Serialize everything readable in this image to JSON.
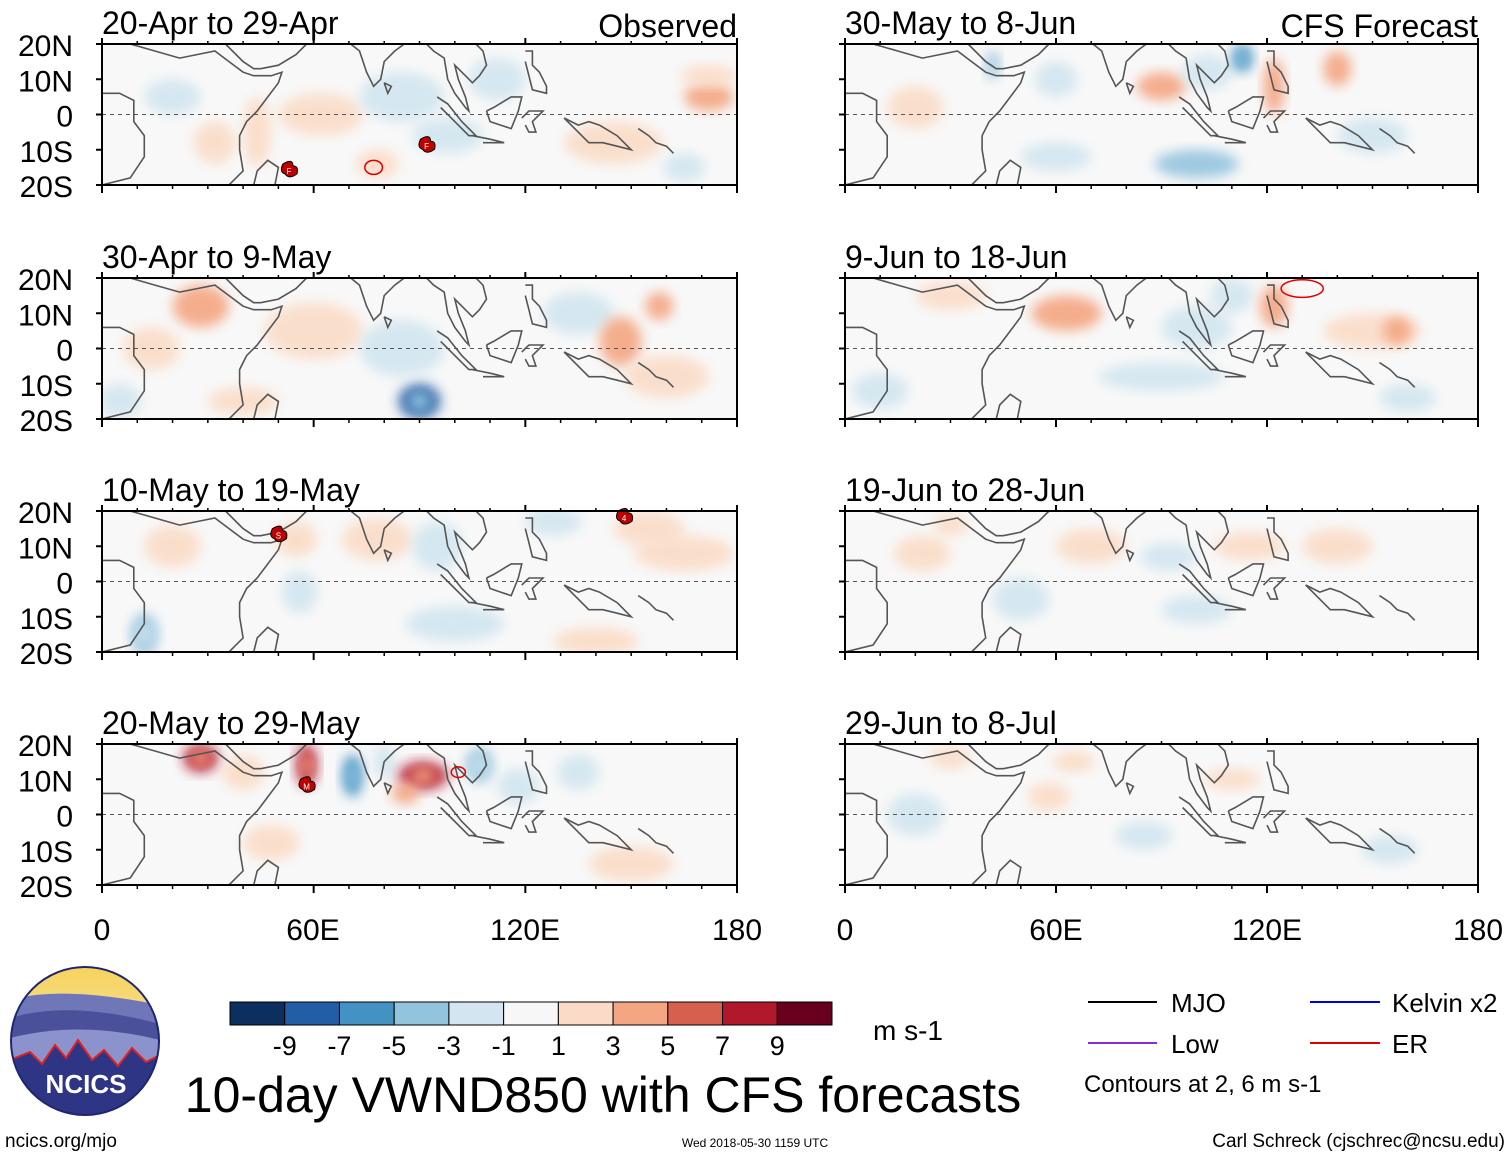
{
  "title": "10-day VWND850 with CFS forecasts",
  "left_column_label": "Observed",
  "right_column_label": "CFS Forecast",
  "chart_data": {
    "type": "heatmap",
    "variable": "850 hPa meridional wind anomaly",
    "x_axis": {
      "range": [
        0,
        180
      ],
      "ticks": [
        0,
        60,
        120,
        180
      ],
      "tick_labels": [
        "0",
        "60E",
        "120E",
        "180"
      ]
    },
    "y_axis": {
      "range": [
        -20,
        20
      ],
      "ticks": [
        20,
        10,
        0,
        -10,
        -20
      ],
      "tick_labels": [
        "20N",
        "10N",
        "0",
        "10S",
        "20S"
      ]
    },
    "panels": [
      {
        "column": "left",
        "row": 0,
        "label": "20-Apr to 29-Apr",
        "anomalies": [
          {
            "lon": 20,
            "lat": 5,
            "value": -2,
            "rx": 8,
            "ry": 5
          },
          {
            "lon": 32,
            "lat": -8,
            "value": 2,
            "rx": 6,
            "ry": 6
          },
          {
            "lon": 44,
            "lat": -5,
            "value": 2,
            "rx": 4,
            "ry": 10
          },
          {
            "lon": 62,
            "lat": 0,
            "value": 1.5,
            "rx": 12,
            "ry": 6
          },
          {
            "lon": 78,
            "lat": -14,
            "value": 2.5,
            "rx": 6,
            "ry": 4
          },
          {
            "lon": 85,
            "lat": 5,
            "value": -3,
            "rx": 12,
            "ry": 7
          },
          {
            "lon": 98,
            "lat": -6,
            "value": -2,
            "rx": 10,
            "ry": 5
          },
          {
            "lon": 112,
            "lat": 10,
            "value": -1.5,
            "rx": 8,
            "ry": 6
          },
          {
            "lon": 145,
            "lat": -8,
            "value": 2,
            "rx": 14,
            "ry": 6
          },
          {
            "lon": 165,
            "lat": -15,
            "value": -3,
            "rx": 6,
            "ry": 4
          },
          {
            "lon": 172,
            "lat": 5,
            "value": 4,
            "rx": 7,
            "ry": 4
          },
          {
            "lon": 172,
            "lat": 11,
            "value": 2,
            "rx": 8,
            "ry": 3
          }
        ],
        "contours": [
          {
            "type": "ER",
            "lon": 77,
            "lat": -15,
            "rx": 2.5,
            "ry": 2
          }
        ],
        "storms": [
          {
            "lon": 53,
            "lat": -16,
            "letter": "F"
          },
          {
            "lon": 92,
            "lat": -9,
            "letter": "F"
          }
        ]
      },
      {
        "column": "left",
        "row": 1,
        "label": "30-Apr to 9-May",
        "anomalies": [
          {
            "lon": 28,
            "lat": 12,
            "value": 4,
            "rx": 8,
            "ry": 6
          },
          {
            "lon": 14,
            "lat": 0,
            "value": 1.5,
            "rx": 8,
            "ry": 6
          },
          {
            "lon": 60,
            "lat": 5,
            "value": 1.5,
            "rx": 14,
            "ry": 8
          },
          {
            "lon": 90,
            "lat": -15,
            "value": -8,
            "rx": 6,
            "ry": 5
          },
          {
            "lon": 85,
            "lat": 0,
            "value": -1.5,
            "rx": 12,
            "ry": 8
          },
          {
            "lon": 135,
            "lat": 10,
            "value": -2,
            "rx": 10,
            "ry": 6
          },
          {
            "lon": 147,
            "lat": 2,
            "value": 4,
            "rx": 6,
            "ry": 7
          },
          {
            "lon": 158,
            "lat": 12,
            "value": 3,
            "rx": 4,
            "ry": 4
          },
          {
            "lon": 160,
            "lat": -8,
            "value": 1.5,
            "rx": 12,
            "ry": 6
          },
          {
            "lon": 40,
            "lat": -15,
            "value": 1.5,
            "rx": 10,
            "ry": 4
          },
          {
            "lon": 5,
            "lat": -15,
            "value": -2,
            "rx": 6,
            "ry": 5
          }
        ],
        "contours": [],
        "storms": []
      },
      {
        "column": "left",
        "row": 2,
        "label": "10-May to 19-May",
        "anomalies": [
          {
            "lon": 12,
            "lat": -15,
            "value": -5,
            "rx": 4,
            "ry": 6
          },
          {
            "lon": 20,
            "lat": 10,
            "value": 1.5,
            "rx": 8,
            "ry": 6
          },
          {
            "lon": 56,
            "lat": -3,
            "value": -3,
            "rx": 5,
            "ry": 6
          },
          {
            "lon": 55,
            "lat": 12,
            "value": 2,
            "rx": 6,
            "ry": 5
          },
          {
            "lon": 78,
            "lat": 12,
            "value": 2,
            "rx": 10,
            "ry": 6
          },
          {
            "lon": 95,
            "lat": 10,
            "value": -3,
            "rx": 7,
            "ry": 7
          },
          {
            "lon": 128,
            "lat": 17,
            "value": -2.5,
            "rx": 8,
            "ry": 4
          },
          {
            "lon": 155,
            "lat": 15,
            "value": 2.5,
            "rx": 10,
            "ry": 5
          },
          {
            "lon": 165,
            "lat": 8,
            "value": 1.5,
            "rx": 14,
            "ry": 5
          },
          {
            "lon": 140,
            "lat": -17,
            "value": 2.5,
            "rx": 12,
            "ry": 4
          },
          {
            "lon": 100,
            "lat": -12,
            "value": -1.5,
            "rx": 14,
            "ry": 5
          }
        ],
        "contours": [],
        "storms": [
          {
            "lon": 50,
            "lat": 13,
            "letter": "S"
          },
          {
            "lon": 148,
            "lat": 18,
            "letter": "4"
          }
        ]
      },
      {
        "column": "left",
        "row": 3,
        "label": "20-May to 29-May",
        "anomalies": [
          {
            "lon": 28,
            "lat": 16,
            "value": 8,
            "rx": 5,
            "ry": 4
          },
          {
            "lon": 40,
            "lat": 12,
            "value": 2,
            "rx": 6,
            "ry": 5
          },
          {
            "lon": 58,
            "lat": 14,
            "value": 8,
            "rx": 3,
            "ry": 6
          },
          {
            "lon": 71,
            "lat": 11,
            "value": -6,
            "rx": 3,
            "ry": 6
          },
          {
            "lon": 80,
            "lat": 15,
            "value": -3,
            "rx": 3,
            "ry": 5
          },
          {
            "lon": 91,
            "lat": 11,
            "value": 7,
            "rx": 7,
            "ry": 4
          },
          {
            "lon": 86,
            "lat": 6,
            "value": 3,
            "rx": 4,
            "ry": 3
          },
          {
            "lon": 107,
            "lat": 14,
            "value": -5,
            "rx": 4,
            "ry": 5
          },
          {
            "lon": 118,
            "lat": 8,
            "value": -2,
            "rx": 6,
            "ry": 5
          },
          {
            "lon": 135,
            "lat": 12,
            "value": -2,
            "rx": 6,
            "ry": 5
          },
          {
            "lon": 150,
            "lat": -14,
            "value": 2,
            "rx": 12,
            "ry": 5
          },
          {
            "lon": 48,
            "lat": -8,
            "value": 1.5,
            "rx": 8,
            "ry": 5
          }
        ],
        "contours": [
          {
            "type": "ER",
            "lon": 101,
            "lat": 12,
            "rx": 2,
            "ry": 1.5
          }
        ],
        "storms": [
          {
            "lon": 58,
            "lat": 8,
            "letter": "M"
          }
        ]
      },
      {
        "column": "right",
        "row": 0,
        "label": "30-May to 8-Jun",
        "anomalies": [
          {
            "lon": 42,
            "lat": 14,
            "value": -5,
            "rx": 2,
            "ry": 4
          },
          {
            "lon": 60,
            "lat": 10,
            "value": -2,
            "rx": 6,
            "ry": 5
          },
          {
            "lon": 90,
            "lat": 8,
            "value": 4,
            "rx": 7,
            "ry": 4
          },
          {
            "lon": 103,
            "lat": 12,
            "value": -2.5,
            "rx": 7,
            "ry": 5
          },
          {
            "lon": 113,
            "lat": 16,
            "value": -7,
            "rx": 3,
            "ry": 4
          },
          {
            "lon": 122,
            "lat": 8,
            "value": 4,
            "rx": 3,
            "ry": 8
          },
          {
            "lon": 140,
            "lat": 13,
            "value": 4,
            "rx": 4,
            "ry": 5
          },
          {
            "lon": 100,
            "lat": -14,
            "value": -3.5,
            "rx": 12,
            "ry": 4
          },
          {
            "lon": 60,
            "lat": -12,
            "value": -2.5,
            "rx": 10,
            "ry": 4
          },
          {
            "lon": 20,
            "lat": 2,
            "value": 1.5,
            "rx": 8,
            "ry": 6
          },
          {
            "lon": 150,
            "lat": -6,
            "value": -1.5,
            "rx": 10,
            "ry": 5
          }
        ],
        "contours": [],
        "storms": []
      },
      {
        "column": "right",
        "row": 1,
        "label": "9-Jun to 18-Jun",
        "anomalies": [
          {
            "lon": 30,
            "lat": 15,
            "value": 2,
            "rx": 10,
            "ry": 4
          },
          {
            "lon": 63,
            "lat": 10,
            "value": 4,
            "rx": 10,
            "ry": 5
          },
          {
            "lon": 100,
            "lat": 6,
            "value": -2,
            "rx": 10,
            "ry": 6
          },
          {
            "lon": 110,
            "lat": 15,
            "value": -3,
            "rx": 6,
            "ry": 5
          },
          {
            "lon": 122,
            "lat": 12,
            "value": 4,
            "rx": 4,
            "ry": 6
          },
          {
            "lon": 150,
            "lat": 5,
            "value": 2,
            "rx": 14,
            "ry": 5
          },
          {
            "lon": 157,
            "lat": 5,
            "value": 3,
            "rx": 4,
            "ry": 4
          },
          {
            "lon": 90,
            "lat": -8,
            "value": -1.5,
            "rx": 18,
            "ry": 4
          },
          {
            "lon": 10,
            "lat": -12,
            "value": -2,
            "rx": 8,
            "ry": 5
          },
          {
            "lon": 160,
            "lat": -14,
            "value": -1.5,
            "rx": 8,
            "ry": 4
          }
        ],
        "contours": [
          {
            "type": "ER",
            "lon": 130,
            "lat": 17,
            "rx": 6,
            "ry": 2.5
          }
        ],
        "storms": []
      },
      {
        "column": "right",
        "row": 2,
        "label": "19-Jun to 28-Jun",
        "anomalies": [
          {
            "lon": 30,
            "lat": 16,
            "value": 2.5,
            "rx": 5,
            "ry": 3
          },
          {
            "lon": 22,
            "lat": 8,
            "value": 1.5,
            "rx": 8,
            "ry": 5
          },
          {
            "lon": 70,
            "lat": 10,
            "value": 1.5,
            "rx": 10,
            "ry": 5
          },
          {
            "lon": 92,
            "lat": 7,
            "value": -2,
            "rx": 8,
            "ry": 4
          },
          {
            "lon": 115,
            "lat": 10,
            "value": 2,
            "rx": 10,
            "ry": 4
          },
          {
            "lon": 140,
            "lat": 10,
            "value": 1.5,
            "rx": 10,
            "ry": 5
          },
          {
            "lon": 50,
            "lat": -5,
            "value": -1.5,
            "rx": 8,
            "ry": 6
          },
          {
            "lon": 100,
            "lat": -8,
            "value": -1.5,
            "rx": 10,
            "ry": 4
          }
        ],
        "contours": [],
        "storms": []
      },
      {
        "column": "right",
        "row": 3,
        "label": "29-Jun to 8-Jul",
        "anomalies": [
          {
            "lon": 30,
            "lat": 16,
            "value": 1.5,
            "rx": 6,
            "ry": 3
          },
          {
            "lon": 65,
            "lat": 15,
            "value": 1.5,
            "rx": 6,
            "ry": 3
          },
          {
            "lon": 85,
            "lat": -6,
            "value": -1.5,
            "rx": 8,
            "ry": 4
          },
          {
            "lon": 110,
            "lat": 10,
            "value": 1.5,
            "rx": 8,
            "ry": 3
          },
          {
            "lon": 155,
            "lat": -10,
            "value": -2,
            "rx": 8,
            "ry": 4
          },
          {
            "lon": 20,
            "lat": 0,
            "value": -1.5,
            "rx": 8,
            "ry": 6
          },
          {
            "lon": 58,
            "lat": 5,
            "value": 1.5,
            "rx": 6,
            "ry": 4
          }
        ],
        "contours": [],
        "storms": []
      }
    ],
    "colorbar": {
      "levels": [
        -9,
        -7,
        -5,
        -3,
        -1,
        1,
        3,
        5,
        7,
        9
      ],
      "tick_labels": [
        "-9",
        "-7",
        "-5",
        "-3",
        "-1",
        "1",
        "3",
        "5",
        "7",
        "9"
      ],
      "colors": [
        "#0d2f60",
        "#225ea6",
        "#4392c3",
        "#93c4de",
        "#d2e5f0",
        "#f7f7f7",
        "#fbdbc7",
        "#f4a582",
        "#d6604d",
        "#b2182b",
        "#67001f"
      ],
      "units": "m s-1"
    },
    "legend": [
      {
        "label": "MJO",
        "color": "#000000"
      },
      {
        "label": "Kelvin x2",
        "color": "#0000dd"
      },
      {
        "label": "Low",
        "color": "#8a2be2"
      },
      {
        "label": "ER",
        "color": "#e00000"
      }
    ],
    "contour_note": "Contours at 2, 6 m s-1"
  },
  "logo": {
    "text": "NCICS"
  },
  "footer": {
    "url": "ncics.org/mjo",
    "timestamp": "Wed 2018-05-30 1159 UTC",
    "credit": "Carl Schreck (cjschrec@ncsu.edu)"
  }
}
